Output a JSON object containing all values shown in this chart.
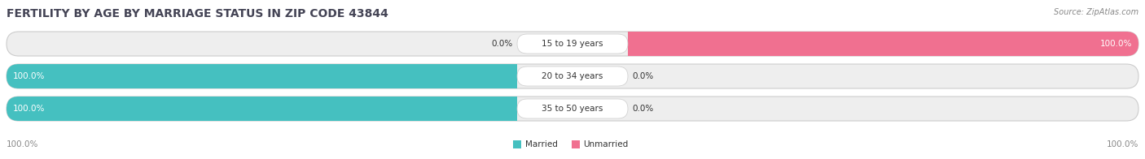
{
  "title": "FERTILITY BY AGE BY MARRIAGE STATUS IN ZIP CODE 43844",
  "source": "Source: ZipAtlas.com",
  "categories": [
    "15 to 19 years",
    "20 to 34 years",
    "35 to 50 years"
  ],
  "married": [
    0.0,
    100.0,
    100.0
  ],
  "unmarried": [
    100.0,
    0.0,
    0.0
  ],
  "married_color": "#45c0c0",
  "unmarried_color": "#f07090",
  "bar_bg_color": "#eeeeee",
  "bar_border_color": "#cccccc",
  "title_color": "#444455",
  "text_color": "#333333",
  "label_color": "#888888",
  "background_color": "#ffffff",
  "title_fontsize": 10,
  "label_fontsize": 7.5,
  "annotation_fontsize": 7.5,
  "footer_fontsize": 7.5,
  "source_fontsize": 7
}
